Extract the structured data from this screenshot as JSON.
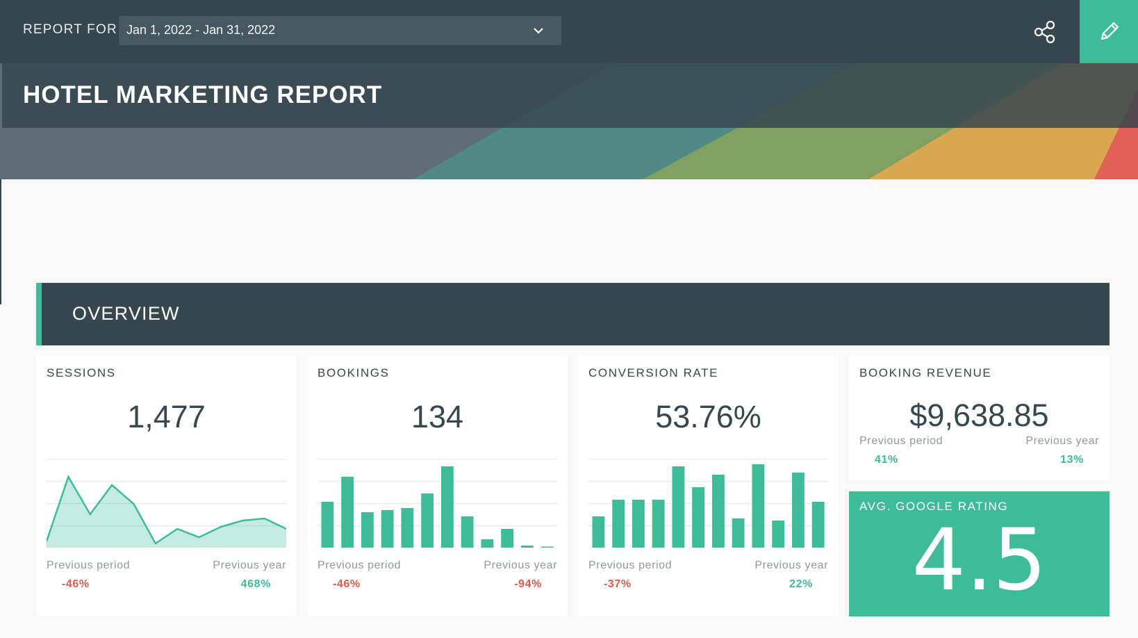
{
  "header": {
    "report_for_label": "REPORT FOR",
    "date_range": "Jan 1, 2022 - Jan 31, 2022",
    "title": "HOTEL MARKETING REPORT",
    "share_icon": "share-icon",
    "edit_icon": "pencil-icon"
  },
  "colors": {
    "dark": "#36474f",
    "accent": "#3ebb99",
    "negative": "#e0584a",
    "muted": "#8f989d"
  },
  "overview": {
    "title": "OVERVIEW"
  },
  "cards": {
    "sessions": {
      "label": "SESSIONS",
      "value": "1,477",
      "prev_period_label": "Previous period",
      "prev_period_value": "-46%",
      "prev_year_label": "Previous year",
      "prev_year_value": "468%",
      "spark": [
        3,
        34,
        16,
        30,
        21,
        2,
        9,
        5,
        10,
        13,
        14,
        9
      ]
    },
    "bookings": {
      "label": "BOOKINGS",
      "value": "134",
      "prev_period_label": "Previous period",
      "prev_period_value": "-46%",
      "prev_year_label": "Previous year",
      "prev_year_value": "-94%",
      "spark": [
        22,
        34,
        17,
        18,
        19,
        26,
        39,
        15,
        4,
        9,
        1,
        0.5
      ]
    },
    "conversion": {
      "label": "CONVERSION RATE",
      "value": "53.76%",
      "prev_period_label": "Previous period",
      "prev_period_value": "-37%",
      "prev_year_label": "Previous year",
      "prev_year_value": "22%",
      "spark": [
        15,
        23,
        23,
        23,
        39,
        29,
        35,
        14,
        40,
        13,
        36,
        22
      ]
    },
    "revenue": {
      "label": "BOOKING REVENUE",
      "value": "$9,638.85",
      "prev_period_label": "Previous period",
      "prev_period_value": "41%",
      "prev_year_label": "Previous year",
      "prev_year_value": "13%"
    },
    "rating": {
      "label": "AVG. GOOGLE RATING",
      "value": "4.5"
    }
  }
}
